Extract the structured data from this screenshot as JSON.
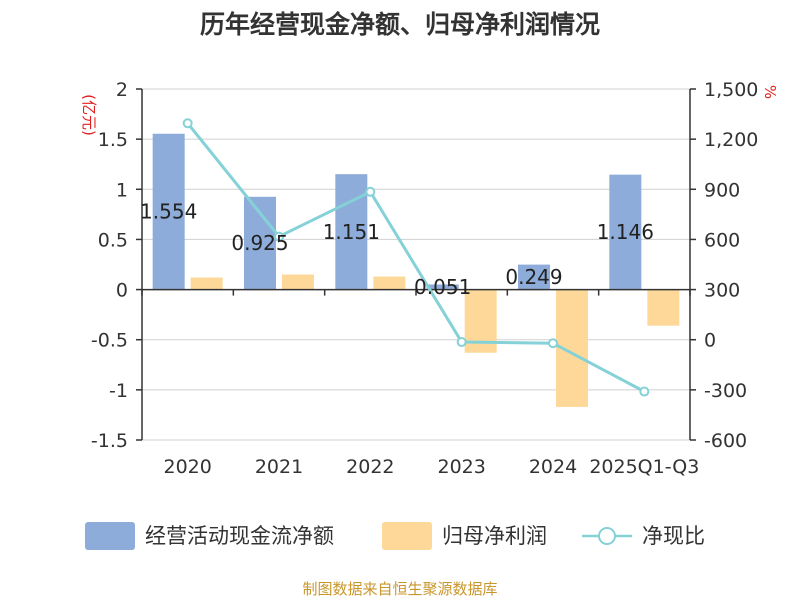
{
  "chart_data": {
    "type": "bar",
    "title": "历年经营现金净额、归母净利润情况",
    "categories": [
      "2020",
      "2021",
      "2022",
      "2023",
      "2024",
      "2025Q1-Q3"
    ],
    "series": [
      {
        "name": "经营活动现金流净额",
        "type": "bar",
        "axis": "left",
        "color": "#8eacd9",
        "values": [
          1.554,
          0.925,
          1.151,
          0.051,
          0.249,
          1.146
        ],
        "labels": [
          "1.554",
          "0.925",
          "1.151",
          "0.051",
          "0.249",
          "1.146"
        ]
      },
      {
        "name": "归母净利润",
        "type": "bar",
        "axis": "left",
        "color": "#fdd898",
        "values": [
          0.12,
          0.15,
          0.13,
          -0.63,
          -1.17,
          -0.36
        ]
      },
      {
        "name": "净现比",
        "type": "line",
        "axis": "right",
        "color": "#85d1d8",
        "values": [
          1295,
          617,
          885,
          -14,
          -21,
          -310
        ]
      }
    ],
    "y_left": {
      "unit": "(亿元)",
      "min": -1.5,
      "max": 2,
      "ticks": [
        "2",
        "1.5",
        "1",
        "0.5",
        "0",
        "-0.5",
        "-1",
        "-1.5"
      ]
    },
    "y_right": {
      "unit": "%",
      "min": -600,
      "max": 1500,
      "ticks": [
        "1,500",
        "1,200",
        "900",
        "600",
        "300",
        "0",
        "-300",
        "-600"
      ]
    },
    "legend": [
      "经营活动现金流净额",
      "归母净利润",
      "净现比"
    ],
    "grid": true
  },
  "source": "制图数据来自恒生聚源数据库"
}
